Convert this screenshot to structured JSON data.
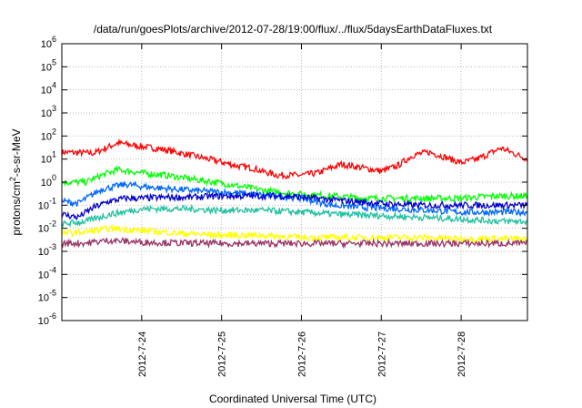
{
  "chart_data": {
    "type": "line",
    "title": "/data/run/goesPlots/archive/2012-07-28/19:00/flux/../flux/5daysEarthDataFluxes.txt",
    "xlabel": "Coordinated Universal Time (UTC)",
    "ylabel": "protons/cm2-s-sr-MeV",
    "yscale": "log",
    "ylim": [
      1e-06,
      1000000.0
    ],
    "xlim": [
      "2012-07-23 00:00",
      "2012-07-28 20:00"
    ],
    "grid": true,
    "legend": "none",
    "y_ticks": [
      {
        "exp": "-6"
      },
      {
        "exp": "-5"
      },
      {
        "exp": "-4"
      },
      {
        "exp": "-3"
      },
      {
        "exp": "-2"
      },
      {
        "exp": "-1"
      },
      {
        "exp": "0"
      },
      {
        "exp": "1"
      },
      {
        "exp": "2"
      },
      {
        "exp": "3"
      },
      {
        "exp": "4"
      },
      {
        "exp": "5"
      },
      {
        "exp": "6"
      }
    ],
    "x_ticks": [
      "2012-7-24",
      "2012-7-25",
      "2012-7-26",
      "2012-7-27",
      "2012-7-28"
    ],
    "series": [
      {
        "color": "#ff0000",
        "x_days": [
          0,
          0.4,
          0.7,
          1.0,
          1.3,
          1.6,
          1.9,
          2.2,
          2.4,
          2.5,
          2.7,
          3.0,
          3.2,
          3.5,
          3.8,
          4.0,
          4.2,
          4.4,
          4.6,
          4.8,
          5.0,
          5.2,
          5.5,
          5.83
        ],
        "values": [
          20,
          18,
          50,
          35,
          25,
          15,
          9,
          5,
          4,
          3,
          2,
          2,
          2.5,
          6,
          4,
          3,
          5,
          15,
          20,
          12,
          7,
          10,
          30,
          10
        ]
      },
      {
        "color": "#00ff00",
        "x_days": [
          0,
          0.3,
          0.5,
          0.7,
          1.0,
          1.3,
          1.6,
          2.0,
          2.3,
          2.6,
          3.0,
          3.4,
          3.8,
          4.2,
          4.6,
          5.0,
          5.4,
          5.83
        ],
        "values": [
          1.0,
          1.0,
          2.0,
          3.5,
          2.5,
          2.0,
          1.4,
          0.9,
          0.6,
          0.4,
          0.3,
          0.25,
          0.2,
          0.2,
          0.2,
          0.2,
          0.25,
          0.25
        ]
      },
      {
        "color": "#0066ff",
        "x_days": [
          0,
          0.2,
          0.5,
          0.8,
          1.1,
          1.4,
          1.8,
          2.1,
          2.4,
          2.7,
          3.0,
          3.4,
          3.8,
          4.2,
          4.6,
          5.0,
          5.4,
          5.83
        ],
        "values": [
          0.15,
          0.12,
          0.5,
          0.8,
          0.6,
          0.5,
          0.4,
          0.35,
          0.3,
          0.25,
          0.2,
          0.1,
          0.08,
          0.07,
          0.06,
          0.05,
          0.05,
          0.05
        ]
      },
      {
        "color": "#0000cc",
        "x_days": [
          0,
          0.2,
          0.4,
          0.6,
          0.8,
          1.0,
          1.3,
          1.6,
          2.0,
          2.4,
          2.8,
          3.2,
          3.6,
          4.0,
          4.4,
          4.8,
          5.2,
          5.5,
          5.83
        ],
        "values": [
          0.04,
          0.03,
          0.08,
          0.15,
          0.2,
          0.2,
          0.22,
          0.22,
          0.25,
          0.25,
          0.25,
          0.2,
          0.15,
          0.12,
          0.1,
          0.1,
          0.1,
          0.1,
          0.1
        ]
      },
      {
        "color": "#20c0a0",
        "x_days": [
          0,
          0.3,
          0.6,
          1.0,
          1.5,
          2.0,
          2.5,
          3.0,
          3.5,
          4.0,
          4.5,
          5.0,
          5.5,
          5.83
        ],
        "values": [
          0.015,
          0.02,
          0.04,
          0.07,
          0.07,
          0.06,
          0.06,
          0.05,
          0.04,
          0.035,
          0.03,
          0.025,
          0.02,
          0.02
        ]
      },
      {
        "color": "#ffff00",
        "x_days": [
          0,
          0.3,
          0.6,
          1.0,
          1.5,
          2.0,
          2.5,
          3.0,
          3.5,
          4.0,
          4.5,
          5.0,
          5.5,
          5.83
        ],
        "values": [
          0.006,
          0.007,
          0.01,
          0.008,
          0.006,
          0.005,
          0.005,
          0.004,
          0.004,
          0.004,
          0.004,
          0.0035,
          0.0035,
          0.0035
        ]
      },
      {
        "color": "#993366",
        "x_days": [
          0,
          0.3,
          0.6,
          1.0,
          1.5,
          2.0,
          2.5,
          3.0,
          3.5,
          4.0,
          4.5,
          5.0,
          5.5,
          5.83
        ],
        "values": [
          0.0022,
          0.0023,
          0.003,
          0.0025,
          0.0023,
          0.0022,
          0.0022,
          0.0022,
          0.0022,
          0.0022,
          0.0022,
          0.0022,
          0.0022,
          0.0022
        ]
      }
    ]
  }
}
